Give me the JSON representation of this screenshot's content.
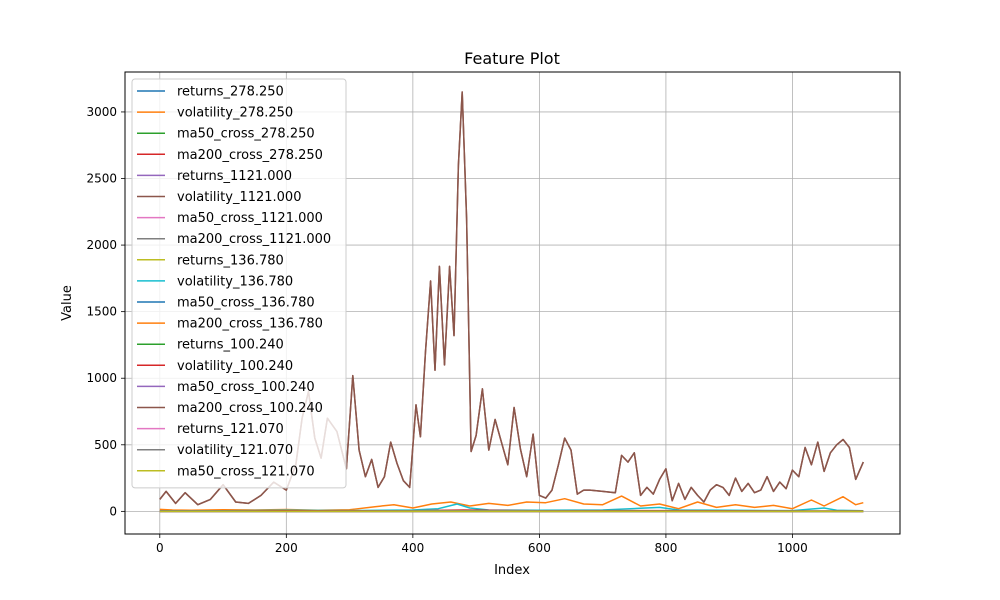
{
  "chart_data": {
    "type": "line",
    "title": "Feature Plot",
    "xlabel": "Index",
    "ylabel": "Value",
    "xlim": [
      -55,
      1170
    ],
    "ylim": [
      -170,
      3300
    ],
    "xticks": [
      0,
      200,
      400,
      600,
      800,
      1000
    ],
    "yticks": [
      0,
      500,
      1000,
      1500,
      2000,
      2500,
      3000
    ],
    "grid": true,
    "legend_position": "upper-left",
    "series": [
      {
        "name": "returns_278.250",
        "color": "#1f77b4",
        "x": [
          0,
          200,
          400,
          600,
          800,
          1000,
          1112
        ],
        "y": [
          0,
          0,
          0,
          0,
          0,
          0,
          0
        ]
      },
      {
        "name": "volatility_278.250",
        "color": "#ff7f0e",
        "x": [
          0,
          20,
          50,
          100,
          150,
          200,
          250,
          300,
          340,
          370,
          400,
          430,
          460,
          490,
          520,
          550,
          580,
          610,
          640,
          670,
          700,
          730,
          760,
          790,
          820,
          850,
          880,
          910,
          940,
          970,
          1000,
          1030,
          1050,
          1080,
          1100,
          1112
        ],
        "y": [
          15,
          10,
          8,
          12,
          10,
          14,
          9,
          12,
          35,
          50,
          25,
          55,
          70,
          40,
          60,
          45,
          70,
          65,
          95,
          55,
          50,
          115,
          40,
          55,
          20,
          70,
          30,
          50,
          30,
          45,
          20,
          85,
          40,
          110,
          50,
          65
        ]
      },
      {
        "name": "ma50_cross_278.250",
        "color": "#2ca02c",
        "x": [
          0,
          1112
        ],
        "y": [
          0,
          0
        ]
      },
      {
        "name": "ma200_cross_278.250",
        "color": "#d62728",
        "x": [
          0,
          1112
        ],
        "y": [
          0,
          0
        ]
      },
      {
        "name": "returns_1121.000",
        "color": "#9467bd",
        "x": [
          0,
          1112
        ],
        "y": [
          0,
          0
        ]
      },
      {
        "name": "volatility_1121.000",
        "color": "#8c564b",
        "x": [
          0,
          10,
          25,
          40,
          60,
          80,
          100,
          120,
          140,
          160,
          180,
          200,
          215,
          225,
          235,
          245,
          255,
          265,
          280,
          295,
          305,
          315,
          325,
          335,
          345,
          355,
          365,
          375,
          385,
          395,
          405,
          412,
          420,
          428,
          435,
          442,
          450,
          458,
          465,
          472,
          478,
          485,
          492,
          500,
          510,
          520,
          530,
          540,
          550,
          560,
          570,
          580,
          590,
          600,
          610,
          620,
          630,
          640,
          650,
          660,
          670,
          680,
          700,
          720,
          730,
          740,
          750,
          760,
          770,
          780,
          790,
          800,
          810,
          820,
          830,
          840,
          850,
          860,
          870,
          880,
          890,
          900,
          910,
          920,
          930,
          940,
          950,
          960,
          970,
          980,
          990,
          1000,
          1010,
          1020,
          1030,
          1040,
          1050,
          1060,
          1070,
          1080,
          1090,
          1100,
          1112
        ],
        "y": [
          90,
          150,
          60,
          140,
          50,
          90,
          200,
          70,
          60,
          120,
          220,
          160,
          350,
          700,
          900,
          550,
          400,
          700,
          600,
          320,
          1020,
          460,
          260,
          390,
          180,
          260,
          520,
          360,
          230,
          180,
          800,
          560,
          1200,
          1730,
          1060,
          1840,
          1100,
          1840,
          1320,
          2600,
          3150,
          2200,
          450,
          570,
          920,
          460,
          690,
          520,
          350,
          780,
          470,
          260,
          580,
          120,
          100,
          160,
          350,
          550,
          460,
          130,
          160,
          160,
          150,
          140,
          420,
          370,
          440,
          120,
          180,
          130,
          240,
          320,
          80,
          210,
          90,
          180,
          120,
          70,
          160,
          200,
          180,
          120,
          250,
          150,
          210,
          140,
          160,
          260,
          150,
          220,
          170,
          310,
          260,
          480,
          350,
          520,
          300,
          440,
          500,
          540,
          480,
          240,
          370
        ]
      },
      {
        "name": "ma50_cross_1121.000",
        "color": "#e377c2",
        "x": [
          0,
          1112
        ],
        "y": [
          0,
          0
        ]
      },
      {
        "name": "ma200_cross_1121.000",
        "color": "#7f7f7f",
        "x": [
          0,
          1112
        ],
        "y": [
          0,
          0
        ]
      },
      {
        "name": "returns_136.780",
        "color": "#bcbd22",
        "x": [
          0,
          1112
        ],
        "y": [
          0,
          0
        ]
      },
      {
        "name": "volatility_136.780",
        "color": "#17becf",
        "x": [
          0,
          100,
          200,
          300,
          400,
          440,
          470,
          490,
          520,
          600,
          700,
          790,
          820,
          900,
          1000,
          1050,
          1070,
          1112
        ],
        "y": [
          5,
          5,
          8,
          6,
          10,
          20,
          55,
          25,
          10,
          8,
          10,
          30,
          10,
          8,
          6,
          25,
          8,
          5
        ]
      },
      {
        "name": "ma50_cross_136.780",
        "color": "#1f77b4",
        "x": [
          0,
          1112
        ],
        "y": [
          0,
          0
        ]
      },
      {
        "name": "ma200_cross_136.780",
        "color": "#ff7f0e",
        "x": [
          0,
          1112
        ],
        "y": [
          0,
          0
        ]
      },
      {
        "name": "returns_100.240",
        "color": "#2ca02c",
        "x": [
          0,
          1112
        ],
        "y": [
          0,
          0
        ]
      },
      {
        "name": "volatility_100.240",
        "color": "#d62728",
        "x": [
          0,
          100,
          200,
          400,
          480,
          600,
          800,
          1000,
          1112
        ],
        "y": [
          3,
          3,
          4,
          5,
          10,
          4,
          6,
          3,
          3
        ]
      },
      {
        "name": "ma50_cross_100.240",
        "color": "#9467bd",
        "x": [
          0,
          1112
        ],
        "y": [
          0,
          0
        ]
      },
      {
        "name": "ma200_cross_100.240",
        "color": "#8c564b",
        "x": [
          0,
          10,
          25,
          40,
          60,
          80,
          100,
          120,
          140,
          160,
          180,
          200,
          215,
          225,
          235,
          245,
          255,
          265,
          280,
          295,
          305,
          315,
          325,
          335,
          345,
          355,
          365,
          375,
          385,
          395,
          405,
          412,
          420,
          428,
          435,
          442,
          450,
          458,
          465,
          472,
          478,
          485,
          492,
          500,
          510,
          520,
          530,
          540,
          550,
          560,
          570,
          580,
          590,
          600,
          610,
          620,
          630,
          640,
          650,
          660,
          670,
          680,
          700,
          720,
          730,
          740,
          750,
          760,
          770,
          780,
          790,
          800,
          810,
          820,
          830,
          840,
          850,
          860,
          870,
          880,
          890,
          900,
          910,
          920,
          930,
          940,
          950,
          960,
          970,
          980,
          990,
          1000,
          1010,
          1020,
          1030,
          1040,
          1050,
          1060,
          1070,
          1080,
          1090,
          1100,
          1112
        ],
        "y": [
          90,
          150,
          60,
          140,
          50,
          90,
          200,
          70,
          60,
          120,
          220,
          160,
          350,
          700,
          900,
          550,
          400,
          700,
          600,
          320,
          1020,
          460,
          260,
          390,
          180,
          260,
          520,
          360,
          230,
          180,
          800,
          560,
          1200,
          1730,
          1060,
          1840,
          1100,
          1840,
          1320,
          2600,
          3150,
          2200,
          450,
          570,
          920,
          460,
          690,
          520,
          350,
          780,
          470,
          260,
          580,
          120,
          100,
          160,
          350,
          550,
          460,
          130,
          160,
          160,
          150,
          140,
          420,
          370,
          440,
          120,
          180,
          130,
          240,
          320,
          80,
          210,
          90,
          180,
          120,
          70,
          160,
          200,
          180,
          120,
          250,
          150,
          210,
          140,
          160,
          260,
          150,
          220,
          170,
          310,
          260,
          480,
          350,
          520,
          300,
          440,
          500,
          540,
          480,
          240,
          370
        ]
      },
      {
        "name": "returns_121.070",
        "color": "#e377c2",
        "x": [
          0,
          1112
        ],
        "y": [
          0,
          0
        ]
      },
      {
        "name": "volatility_121.070",
        "color": "#7f7f7f",
        "x": [
          0,
          200,
          480,
          800,
          1112
        ],
        "y": [
          2,
          2,
          6,
          3,
          2
        ]
      },
      {
        "name": "ma50_cross_121.070",
        "color": "#bcbd22",
        "x": [
          0,
          1112
        ],
        "y": [
          0,
          0
        ]
      }
    ]
  }
}
